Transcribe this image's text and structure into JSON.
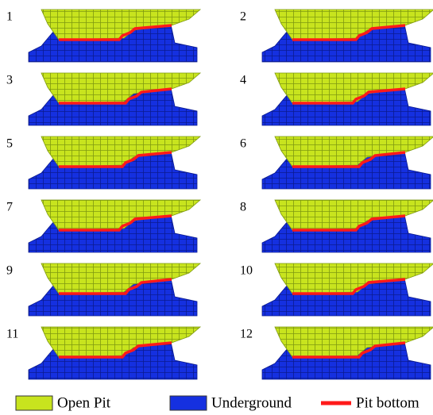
{
  "panels": [
    {
      "label": "1"
    },
    {
      "label": "2"
    },
    {
      "label": "3"
    },
    {
      "label": "4"
    },
    {
      "label": "5"
    },
    {
      "label": "6"
    },
    {
      "label": "7"
    },
    {
      "label": "8"
    },
    {
      "label": "9"
    },
    {
      "label": "10"
    },
    {
      "label": "11"
    },
    {
      "label": "12"
    }
  ],
  "legend": [
    {
      "label": "Open Pit"
    },
    {
      "label": "Underground"
    },
    {
      "label": "Pit bottom"
    }
  ]
}
